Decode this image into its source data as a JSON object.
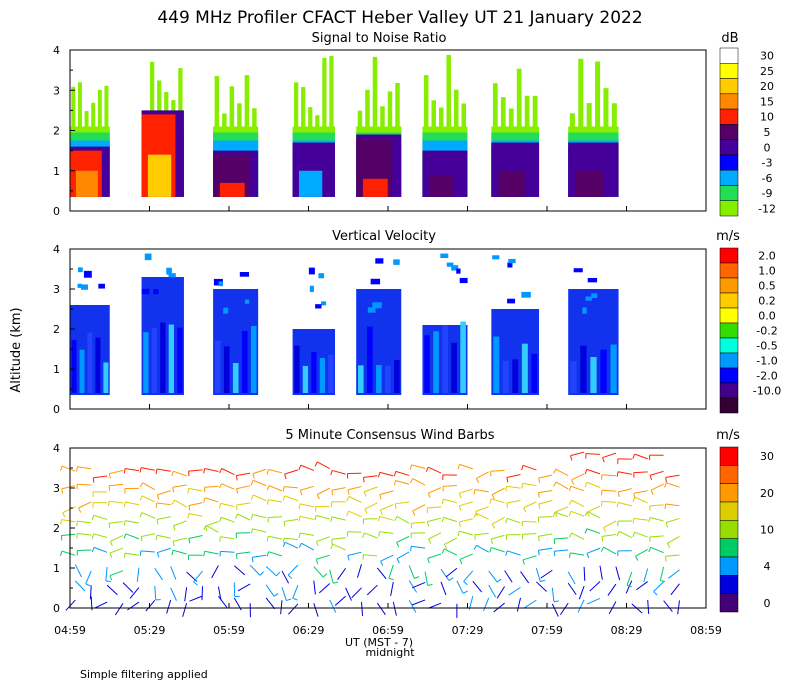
{
  "title": "449 MHz Profiler CFACT Heber Valley UT 21 January 2022",
  "footnote": "Simple filtering applied",
  "chart_data": {
    "type": "heatmap",
    "x_axis": {
      "label": "UT (MST - 7)",
      "midnight_label": "midnight",
      "ticks": [
        "04:59",
        "05:29",
        "05:59",
        "06:29",
        "06:59",
        "07:29",
        "07:59",
        "08:29",
        "08:59"
      ],
      "range_minutes": [
        0,
        240
      ]
    },
    "y_axis": {
      "label": "Altitude (km)",
      "ticks": [
        "0",
        "1",
        "2",
        "3",
        "4"
      ],
      "range": [
        0,
        4
      ]
    },
    "panels": [
      {
        "id": "snr",
        "title": "Signal to Noise Ratio",
        "units": "dB",
        "legend": [
          {
            "label": "30",
            "color": "#ffffff"
          },
          {
            "label": "25",
            "color": "#ffff00"
          },
          {
            "label": "20",
            "color": "#ffcc00"
          },
          {
            "label": "15",
            "color": "#ff8800"
          },
          {
            "label": "10",
            "color": "#ff2200"
          },
          {
            "label": "5",
            "color": "#550066"
          },
          {
            "label": "0",
            "color": "#440099"
          },
          {
            "label": "-3",
            "color": "#0000ff"
          },
          {
            "label": "-6",
            "color": "#00aaff"
          },
          {
            "label": "-9",
            "color": "#22dd55"
          },
          {
            "label": "-12",
            "color": "#88ee00"
          }
        ]
      },
      {
        "id": "vv",
        "title": "Vertical Velocity",
        "units": "m/s",
        "legend": [
          {
            "label": "2.0",
            "color": "#ff0000"
          },
          {
            "label": "1.0",
            "color": "#ff6600"
          },
          {
            "label": "0.5",
            "color": "#ff9900"
          },
          {
            "label": "0.2",
            "color": "#ffcc00"
          },
          {
            "label": "0.0",
            "color": "#ffff00"
          },
          {
            "label": "-0.2",
            "color": "#33dd00"
          },
          {
            "label": "-0.5",
            "color": "#00ffdd"
          },
          {
            "label": "-1.0",
            "color": "#0099ff"
          },
          {
            "label": "-2.0",
            "color": "#0000ff"
          },
          {
            "label": "-10.0",
            "color": "#440088"
          },
          {
            "label": "",
            "color": "#330033"
          }
        ]
      },
      {
        "id": "wind",
        "title": "5 Minute Consensus Wind Barbs",
        "units": "m/s",
        "legend": [
          {
            "label": "30",
            "color": "#ff0000"
          },
          {
            "label": "",
            "color": "#ff6600"
          },
          {
            "label": "20",
            "color": "#ff9900"
          },
          {
            "label": "",
            "color": "#ddcc00"
          },
          {
            "label": "10",
            "color": "#99dd00"
          },
          {
            "label": "",
            "color": "#00cc66"
          },
          {
            "label": "4",
            "color": "#0099ff"
          },
          {
            "label": "",
            "color": "#0000dd"
          },
          {
            "label": "0",
            "color": "#440077"
          }
        ]
      }
    ],
    "data_segments_minutes": [
      [
        0,
        15
      ],
      [
        27,
        43
      ],
      [
        54,
        71
      ],
      [
        84,
        100
      ],
      [
        108,
        125
      ],
      [
        133,
        150
      ],
      [
        159,
        177
      ],
      [
        188,
        207
      ]
    ],
    "snr_profile": [
      {
        "seg": 1,
        "high_color": "#ff2200",
        "high_top_km": 1.5,
        "hot_color": "#ff8800",
        "hot_top_km": 1.0
      },
      {
        "seg": 2,
        "high_color": "#ff2200",
        "high_top_km": 2.4,
        "hot_color": "#ffcc00",
        "hot_top_km": 1.4
      },
      {
        "seg": 3,
        "high_color": "#550066",
        "high_top_km": 1.4,
        "hot_color": "#ff2200",
        "hot_top_km": 0.7
      },
      {
        "seg": 4,
        "high_color": "#440099",
        "high_top_km": 1.6,
        "hot_color": "#00aaff",
        "hot_top_km": 1.0
      },
      {
        "seg": 5,
        "high_color": "#550066",
        "high_top_km": 1.8,
        "hot_color": "#ff2200",
        "hot_top_km": 0.8
      },
      {
        "seg": 6,
        "high_color": "#440099",
        "high_top_km": 1.4,
        "hot_color": "#550066",
        "hot_top_km": 0.9
      },
      {
        "seg": 7,
        "high_color": "#440099",
        "high_top_km": 1.6,
        "hot_color": "#550066",
        "hot_top_km": 1.0
      },
      {
        "seg": 8,
        "high_color": "#440099",
        "high_top_km": 1.6,
        "hot_color": "#550066",
        "hot_top_km": 1.0
      }
    ],
    "vv_profile": [
      {
        "seg": 1,
        "top_km": 2.6
      },
      {
        "seg": 2,
        "top_km": 3.3
      },
      {
        "seg": 3,
        "top_km": 3.0
      },
      {
        "seg": 4,
        "top_km": 2.0
      },
      {
        "seg": 5,
        "top_km": 3.0
      },
      {
        "seg": 6,
        "top_km": 2.1
      },
      {
        "seg": 7,
        "top_km": 2.5
      },
      {
        "seg": 8,
        "top_km": 3.0
      }
    ],
    "wind_profile": [
      {
        "alt_km": 0.2,
        "speed": 2
      },
      {
        "alt_km": 0.6,
        "speed": 4
      },
      {
        "alt_km": 1.0,
        "speed": 5
      },
      {
        "alt_km": 1.4,
        "speed": 8
      },
      {
        "alt_km": 1.8,
        "speed": 12
      },
      {
        "alt_km": 2.2,
        "speed": 14
      },
      {
        "alt_km": 2.6,
        "speed": 18
      },
      {
        "alt_km": 3.0,
        "speed": 22
      },
      {
        "alt_km": 3.4,
        "speed": 26
      },
      {
        "alt_km": 3.8,
        "speed": 28
      }
    ]
  }
}
